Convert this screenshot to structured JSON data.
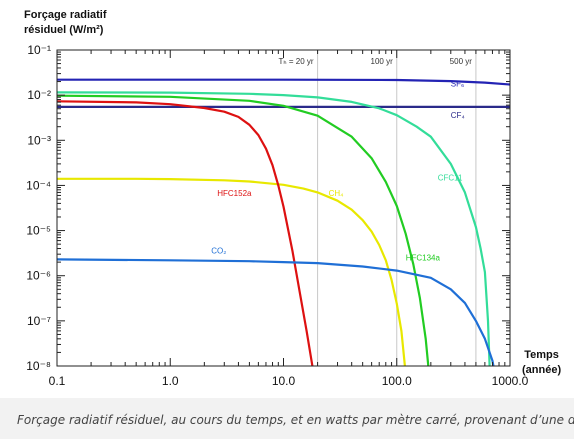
{
  "chart_data": {
    "type": "line",
    "ylabel_line1": "Forçage radiatif",
    "ylabel_line2": "résiduel (W/m²)",
    "xlabel_line1": "Temps",
    "xlabel_line2": "(année)",
    "xscale": "log",
    "yscale": "log",
    "xlim": [
      0.1,
      1000
    ],
    "ylim": [
      1e-08,
      0.1
    ],
    "x_ticks": [
      {
        "value": 0.1,
        "label": "0.1"
      },
      {
        "value": 1,
        "label": "1.0"
      },
      {
        "value": 10,
        "label": "10.0"
      },
      {
        "value": 100,
        "label": "100.0"
      },
      {
        "value": 1000,
        "label": "1000.0"
      }
    ],
    "y_ticks": [
      {
        "value": 0.1,
        "label": "10⁻¹"
      },
      {
        "value": 0.01,
        "label": "10⁻²"
      },
      {
        "value": 0.001,
        "label": "10⁻³"
      },
      {
        "value": 0.0001,
        "label": "10⁻⁴"
      },
      {
        "value": 1e-05,
        "label": "10⁻⁵"
      },
      {
        "value": 1e-06,
        "label": "10⁻⁶"
      },
      {
        "value": 1e-07,
        "label": "10⁻⁷"
      },
      {
        "value": 1e-08,
        "label": "10⁻⁸"
      }
    ],
    "horizons": [
      {
        "x": 20,
        "label": "Tₕ =  20 yr"
      },
      {
        "x": 100,
        "label": "100 yr"
      },
      {
        "x": 500,
        "label": "500 yr"
      }
    ],
    "series": [
      {
        "name": "SF₆",
        "color": "#2323b4",
        "label_x": 300,
        "label_y": 0.0155,
        "points": [
          [
            0.1,
            0.022
          ],
          [
            1,
            0.022
          ],
          [
            10,
            0.022
          ],
          [
            100,
            0.0216
          ],
          [
            300,
            0.0205
          ],
          [
            600,
            0.019
          ],
          [
            1000,
            0.0172
          ]
        ]
      },
      {
        "name": "CF₄",
        "color": "#2a2a8a",
        "label_x": 300,
        "label_y": 0.0031,
        "points": [
          [
            0.1,
            0.0055
          ],
          [
            1000,
            0.0055
          ]
        ]
      },
      {
        "name": "CFC11",
        "color": "#33dd99",
        "label_x": 230,
        "label_y": 0.00013,
        "points": [
          [
            0.1,
            0.0115
          ],
          [
            1,
            0.0114
          ],
          [
            5,
            0.0107
          ],
          [
            10,
            0.01
          ],
          [
            20,
            0.0089
          ],
          [
            40,
            0.0071
          ],
          [
            70,
            0.0051
          ],
          [
            100,
            0.0036
          ],
          [
            150,
            0.002
          ],
          [
            200,
            0.0012
          ],
          [
            300,
            0.0003
          ],
          [
            400,
            7e-05
          ],
          [
            500,
            1.2e-05
          ],
          [
            550,
            4e-06
          ],
          [
            600,
            1.2e-06
          ],
          [
            640,
            1e-07
          ],
          [
            660,
            1e-08
          ]
        ]
      },
      {
        "name": "HFC134a",
        "color": "#22cc22",
        "label_x": 120,
        "label_y": 2.2e-06,
        "points": [
          [
            0.1,
            0.0097
          ],
          [
            1,
            0.0092
          ],
          [
            5,
            0.0075
          ],
          [
            10,
            0.0058
          ],
          [
            20,
            0.0035
          ],
          [
            40,
            0.0012
          ],
          [
            60,
            0.0004
          ],
          [
            80,
            0.00012
          ],
          [
            100,
            3.5e-05
          ],
          [
            120,
            8.5e-06
          ],
          [
            140,
            1.8e-06
          ],
          [
            160,
            3.2e-07
          ],
          [
            180,
            4e-08
          ],
          [
            190,
            1e-08
          ]
        ]
      },
      {
        "name": "CH₄",
        "color": "#e8e800",
        "label_x": 25,
        "label_y": 5.8e-05,
        "points": [
          [
            0.1,
            0.00014
          ],
          [
            0.5,
            0.00014
          ],
          [
            1,
            0.000138
          ],
          [
            3,
            0.00013
          ],
          [
            5,
            0.000122
          ],
          [
            10,
            0.000103
          ],
          [
            15,
            8.5e-05
          ],
          [
            20,
            7e-05
          ],
          [
            30,
            4.6e-05
          ],
          [
            40,
            2.9e-05
          ],
          [
            50,
            1.7e-05
          ],
          [
            60,
            9.5e-06
          ],
          [
            70,
            4.8e-06
          ],
          [
            80,
            2.2e-06
          ],
          [
            90,
            8e-07
          ],
          [
            100,
            2.4e-07
          ],
          [
            110,
            6e-08
          ],
          [
            118,
            1e-08
          ]
        ]
      },
      {
        "name": "HFC152a",
        "color": "#dd1111",
        "label_x": 2.6,
        "label_y": 5.8e-05,
        "points": [
          [
            0.1,
            0.0073
          ],
          [
            0.5,
            0.0069
          ],
          [
            1,
            0.0063
          ],
          [
            2,
            0.0052
          ],
          [
            3,
            0.0043
          ],
          [
            4,
            0.0033
          ],
          [
            5,
            0.0022
          ],
          [
            6,
            0.0013
          ],
          [
            7,
            0.00065
          ],
          [
            8,
            0.00028
          ],
          [
            9,
            0.0001
          ],
          [
            10,
            3.4e-05
          ],
          [
            12,
            3.5e-06
          ],
          [
            14,
            4e-07
          ],
          [
            16,
            6e-08
          ],
          [
            18,
            1e-08
          ]
        ]
      },
      {
        "name": "CO₂",
        "color": "#1f6fd6",
        "label_x": 2.3,
        "label_y": 3.1e-06,
        "points": [
          [
            0.1,
            2.3e-06
          ],
          [
            1,
            2.2e-06
          ],
          [
            5,
            2.1e-06
          ],
          [
            10,
            2e-06
          ],
          [
            20,
            1.9e-06
          ],
          [
            50,
            1.6e-06
          ],
          [
            100,
            1.3e-06
          ],
          [
            200,
            9e-07
          ],
          [
            300,
            5e-07
          ],
          [
            400,
            2.5e-07
          ],
          [
            500,
            1e-07
          ],
          [
            600,
            4e-08
          ],
          [
            700,
            1.3e-08
          ],
          [
            750,
            5e-09
          ]
        ]
      }
    ]
  },
  "caption": "Forçage radiatif résiduel, au cours du temps, et en watts par mètre carré, provenant d’une d’un mil"
}
